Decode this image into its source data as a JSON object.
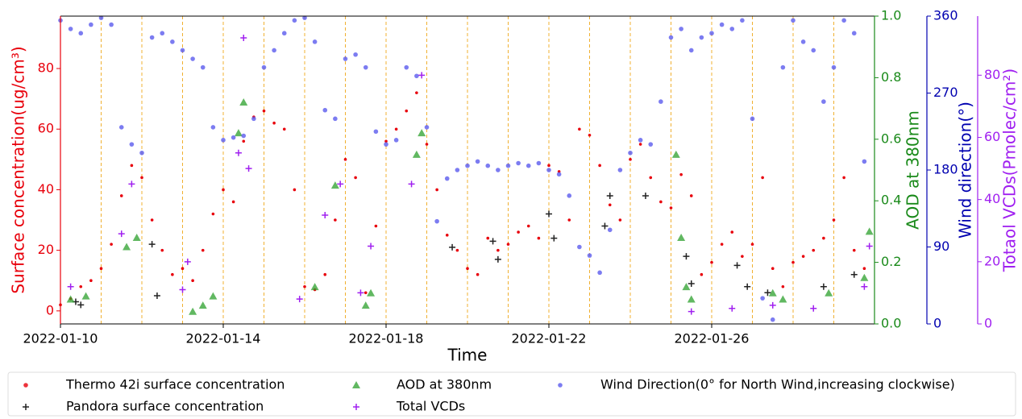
{
  "chart_data": {
    "type": "scatter",
    "xlabel": "Time",
    "ylabel": "Surface concentration(ug/cm³)",
    "y2label": "AOD at 380nm",
    "y3label": "Wind direction(°)",
    "y4label": "Totaol VCDs(Pmolec/cm²)",
    "xlim": [
      "2022-01-10",
      "2022-01-30"
    ],
    "xticks": [
      "2022-01-10",
      "2022-01-14",
      "2022-01-18",
      "2022-01-22",
      "2022-01-26"
    ],
    "ylim": [
      -4.3,
      97.3
    ],
    "yticks": [
      0,
      20,
      40,
      60,
      80
    ],
    "y2lim": [
      0,
      1
    ],
    "y2ticks": [
      {
        "value": 0,
        "label": "0.0"
      },
      0.2,
      0.4,
      0.6,
      0.8,
      {
        "value": 1,
        "label": "1.0"
      }
    ],
    "y3lim": [
      0,
      360
    ],
    "y3ticks": [
      0,
      90,
      180,
      270,
      360
    ],
    "y4lim": [
      0,
      99
    ],
    "y4ticks": [
      0,
      20,
      40,
      60,
      80
    ],
    "axis_colors": {
      "y": "#e8000b",
      "y2": "#1a8a1a",
      "y3": "#0000b0",
      "y4": "#a020f0"
    },
    "day_lines": true,
    "x": [
      "2022-01-10 00:00",
      "2022-01-10 06:00",
      "2022-01-10 12:00",
      "2022-01-10 18:00",
      "2022-01-11 00:00",
      "2022-01-11 06:00",
      "2022-01-11 12:00",
      "2022-01-11 18:00",
      "2022-01-12 00:00",
      "2022-01-12 06:00",
      "2022-01-12 12:00",
      "2022-01-12 18:00",
      "2022-01-13 00:00",
      "2022-01-13 06:00",
      "2022-01-13 12:00",
      "2022-01-13 18:00",
      "2022-01-14 00:00",
      "2022-01-14 06:00",
      "2022-01-14 12:00",
      "2022-01-14 18:00",
      "2022-01-15 00:00",
      "2022-01-15 06:00",
      "2022-01-15 12:00",
      "2022-01-15 18:00",
      "2022-01-16 00:00",
      "2022-01-16 06:00",
      "2022-01-16 12:00",
      "2022-01-16 18:00",
      "2022-01-17 00:00",
      "2022-01-17 06:00",
      "2022-01-17 12:00",
      "2022-01-17 18:00",
      "2022-01-18 00:00",
      "2022-01-18 06:00",
      "2022-01-18 12:00",
      "2022-01-18 18:00",
      "2022-01-19 00:00",
      "2022-01-19 06:00",
      "2022-01-19 12:00",
      "2022-01-19 18:00",
      "2022-01-20 00:00",
      "2022-01-20 06:00",
      "2022-01-20 12:00",
      "2022-01-20 18:00",
      "2022-01-21 00:00",
      "2022-01-21 06:00",
      "2022-01-21 12:00",
      "2022-01-21 18:00",
      "2022-01-22 00:00",
      "2022-01-22 06:00",
      "2022-01-22 12:00",
      "2022-01-22 18:00",
      "2022-01-23 00:00",
      "2022-01-23 06:00",
      "2022-01-23 12:00",
      "2022-01-23 18:00",
      "2022-01-24 00:00",
      "2022-01-24 06:00",
      "2022-01-24 12:00",
      "2022-01-24 18:00",
      "2022-01-25 00:00",
      "2022-01-25 06:00",
      "2022-01-25 12:00",
      "2022-01-25 18:00",
      "2022-01-26 00:00",
      "2022-01-26 06:00",
      "2022-01-26 12:00",
      "2022-01-26 18:00",
      "2022-01-27 00:00",
      "2022-01-27 06:00",
      "2022-01-27 12:00",
      "2022-01-27 18:00",
      "2022-01-28 00:00",
      "2022-01-28 06:00",
      "2022-01-28 12:00",
      "2022-01-28 18:00",
      "2022-01-29 00:00",
      "2022-01-29 06:00",
      "2022-01-29 12:00",
      "2022-01-29 18:00"
    ],
    "series": [
      {
        "name": "Thermo 42i surface concentration",
        "color": "#e8000b",
        "marker": "dot",
        "axis": "y",
        "values": [
          2,
          4,
          8,
          10,
          14,
          22,
          38,
          48,
          44,
          30,
          20,
          12,
          14,
          10,
          20,
          32,
          40,
          36,
          56,
          64,
          66,
          62,
          60,
          40,
          8,
          7,
          12,
          30,
          50,
          44,
          6,
          28,
          56,
          60,
          66,
          72,
          55,
          40,
          25,
          20,
          14,
          12,
          24,
          20,
          22,
          26,
          28,
          24,
          48,
          46,
          30,
          60,
          58,
          48,
          35,
          30,
          50,
          55,
          44,
          36,
          34,
          45,
          38,
          12,
          16,
          22,
          26,
          18,
          22,
          44,
          14,
          8,
          16,
          18,
          20,
          24,
          30,
          44,
          20,
          14
        ]
      },
      {
        "name": "Pandora surface concentration",
        "color": "#222222",
        "marker": "plus",
        "axis": "y",
        "x": [
          "2022-01-10 09:00",
          "2022-01-10 12:00",
          "2022-01-12 06:00",
          "2022-01-12 09:00",
          "2022-01-19 15:00",
          "2022-01-20 15:00",
          "2022-01-20 18:00",
          "2022-01-22 00:00",
          "2022-01-22 03:00",
          "2022-01-23 09:00",
          "2022-01-23 12:00",
          "2022-01-24 09:00",
          "2022-01-25 09:00",
          "2022-01-25 12:00",
          "2022-01-26 15:00",
          "2022-01-26 21:00",
          "2022-01-27 09:00",
          "2022-01-28 18:00",
          "2022-01-29 12:00"
        ],
        "values": [
          3,
          2,
          22,
          5,
          21,
          23,
          17,
          32,
          24,
          28,
          38,
          38,
          18,
          9,
          15,
          8,
          6,
          8,
          12
        ]
      },
      {
        "name": "AOD at 380nm",
        "color": "#2ca02c",
        "marker": "triangle",
        "axis": "y2",
        "x": [
          "2022-01-10 06:00",
          "2022-01-10 15:00",
          "2022-01-11 15:00",
          "2022-01-11 21:00",
          "2022-01-13 06:00",
          "2022-01-13 12:00",
          "2022-01-13 18:00",
          "2022-01-14 09:00",
          "2022-01-14 12:00",
          "2022-01-16 06:00",
          "2022-01-16 18:00",
          "2022-01-17 12:00",
          "2022-01-17 15:00",
          "2022-01-18 18:00",
          "2022-01-18 21:00",
          "2022-01-25 03:00",
          "2022-01-25 06:00",
          "2022-01-25 09:00",
          "2022-01-25 12:00",
          "2022-01-27 12:00",
          "2022-01-27 18:00",
          "2022-01-28 21:00",
          "2022-01-29 18:00",
          "2022-01-29 21:00"
        ],
        "values": [
          0.08,
          0.09,
          0.25,
          0.28,
          0.04,
          0.06,
          0.09,
          0.62,
          0.72,
          0.12,
          0.45,
          0.06,
          0.1,
          0.55,
          0.62,
          0.55,
          0.28,
          0.12,
          0.08,
          0.1,
          0.08,
          0.1,
          0.15,
          0.3
        ]
      },
      {
        "name": "Total VCDs",
        "color": "#a020f0",
        "marker": "plus",
        "axis": "y4",
        "x": [
          "2022-01-10 06:00",
          "2022-01-11 12:00",
          "2022-01-11 18:00",
          "2022-01-13 00:00",
          "2022-01-13 03:00",
          "2022-01-14 09:00",
          "2022-01-14 12:00",
          "2022-01-14 15:00",
          "2022-01-15 21:00",
          "2022-01-16 12:00",
          "2022-01-16 21:00",
          "2022-01-17 09:00",
          "2022-01-17 15:00",
          "2022-01-18 15:00",
          "2022-01-18 21:00",
          "2022-01-25 12:00",
          "2022-01-26 12:00",
          "2022-01-27 12:00",
          "2022-01-28 12:00",
          "2022-01-29 18:00",
          "2022-01-29 21:00"
        ],
        "values": [
          12,
          29,
          45,
          11,
          20,
          55,
          92,
          50,
          8,
          35,
          45,
          10,
          25,
          45,
          80,
          4,
          5,
          6,
          5,
          12,
          25
        ]
      },
      {
        "name": "Wind Direction(0° for North Wind,increasing clockwise)",
        "color": "#5b5bee",
        "marker": "circle",
        "axis": "y3",
        "values": [
          355,
          345,
          340,
          350,
          358,
          350,
          230,
          210,
          200,
          335,
          340,
          330,
          320,
          310,
          300,
          230,
          215,
          218,
          220,
          240,
          300,
          320,
          340,
          355,
          358,
          330,
          250,
          240,
          310,
          315,
          300,
          225,
          210,
          215,
          300,
          290,
          230,
          120,
          170,
          180,
          185,
          190,
          185,
          180,
          185,
          188,
          185,
          188,
          180,
          175,
          150,
          90,
          80,
          60,
          110,
          180,
          200,
          215,
          210,
          260,
          335,
          345,
          320,
          335,
          340,
          350,
          345,
          355,
          240,
          30,
          5,
          300,
          355,
          330,
          320,
          260,
          300,
          355,
          340,
          190
        ]
      }
    ]
  }
}
